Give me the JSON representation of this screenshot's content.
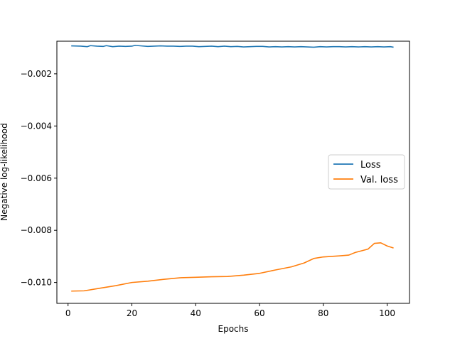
{
  "chart_data": {
    "type": "line",
    "xlabel": "Epochs",
    "ylabel": "Negative log-likelihood",
    "xlim": [
      -3.5,
      107
    ],
    "ylim": [
      -0.0108,
      -0.00075
    ],
    "x_ticks": [
      0,
      20,
      40,
      60,
      80,
      100
    ],
    "x_tick_labels": [
      "0",
      "20",
      "40",
      "60",
      "80",
      "100"
    ],
    "y_ticks": [
      -0.002,
      -0.004,
      -0.006,
      -0.008,
      -0.01
    ],
    "y_tick_labels": [
      "−0.002",
      "−0.004",
      "−0.006",
      "−0.008",
      "−0.010"
    ],
    "legend_position": "center-right",
    "grid": false,
    "series": [
      {
        "name": "Loss",
        "color": "#1f77b4",
        "x": [
          1,
          4,
          6,
          7,
          9,
          11,
          12,
          14,
          16,
          18,
          20,
          21,
          23,
          25,
          27,
          29,
          31,
          33,
          35,
          37,
          39,
          41,
          43,
          45,
          47,
          49,
          51,
          53,
          55,
          57,
          59,
          61,
          63,
          65,
          67,
          69,
          71,
          73,
          75,
          77,
          79,
          81,
          83,
          85,
          87,
          89,
          91,
          93,
          95,
          97,
          99,
          101,
          102
        ],
        "values": [
          -0.00093,
          -0.00094,
          -0.00096,
          -0.00092,
          -0.00094,
          -0.00095,
          -0.00092,
          -0.00096,
          -0.00094,
          -0.00095,
          -0.00094,
          -0.00091,
          -0.00093,
          -0.00095,
          -0.00094,
          -0.00093,
          -0.00094,
          -0.00094,
          -0.00095,
          -0.00094,
          -0.00094,
          -0.00096,
          -0.00095,
          -0.00094,
          -0.00096,
          -0.00094,
          -0.00096,
          -0.00095,
          -0.00097,
          -0.00096,
          -0.00095,
          -0.00095,
          -0.00097,
          -0.00096,
          -0.00097,
          -0.00096,
          -0.00097,
          -0.00096,
          -0.00097,
          -0.00098,
          -0.00096,
          -0.00097,
          -0.00096,
          -0.00096,
          -0.00097,
          -0.00096,
          -0.00097,
          -0.00096,
          -0.00097,
          -0.00096,
          -0.00097,
          -0.00096,
          -0.00098
        ]
      },
      {
        "name": "Val. loss",
        "color": "#ff7f0e",
        "x": [
          1,
          5,
          10,
          15,
          20,
          25,
          30,
          35,
          40,
          45,
          50,
          55,
          60,
          65,
          70,
          74,
          77,
          80,
          85,
          88,
          90,
          94,
          96,
          98,
          100,
          102
        ],
        "values": [
          -0.01033,
          -0.01032,
          -0.01022,
          -0.01012,
          -0.01,
          -0.00995,
          -0.00988,
          -0.00982,
          -0.0098,
          -0.00978,
          -0.00977,
          -0.00972,
          -0.00965,
          -0.00952,
          -0.0094,
          -0.00925,
          -0.00908,
          -0.00902,
          -0.00898,
          -0.00895,
          -0.00885,
          -0.00872,
          -0.0085,
          -0.00848,
          -0.0086,
          -0.00868
        ]
      }
    ]
  }
}
